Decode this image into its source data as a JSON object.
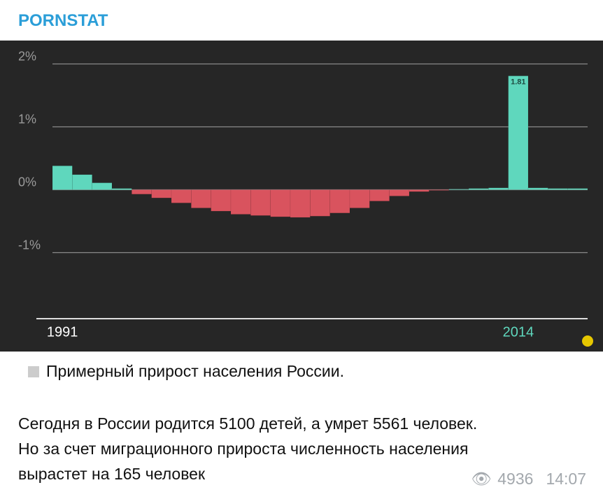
{
  "channel": {
    "name": "PORNSTAT"
  },
  "chart_data": {
    "type": "bar",
    "categories": [
      "1991",
      null,
      null,
      null,
      null,
      null,
      null,
      null,
      null,
      null,
      null,
      null,
      null,
      null,
      null,
      null,
      null,
      null,
      null,
      null,
      null,
      null,
      null,
      "2014",
      null,
      null,
      null
    ],
    "values": [
      0.38,
      0.24,
      0.11,
      0.02,
      -0.07,
      -0.13,
      -0.21,
      -0.29,
      -0.34,
      -0.39,
      -0.41,
      -0.43,
      -0.44,
      -0.42,
      -0.37,
      -0.29,
      -0.18,
      -0.1,
      -0.03,
      -0.01,
      0.01,
      0.02,
      0.03,
      1.81,
      0.03,
      0.02,
      0.02
    ],
    "value_labels": [
      null,
      null,
      null,
      null,
      null,
      null,
      null,
      null,
      null,
      null,
      null,
      null,
      null,
      null,
      null,
      null,
      null,
      null,
      null,
      null,
      null,
      null,
      null,
      "1.81",
      null,
      null,
      null
    ],
    "color_positive": "#5fd7bd",
    "color_negative": "#d9535e",
    "ylim": [
      -2.05,
      2.35
    ],
    "yticks": [
      {
        "value": -1,
        "label": "-1%"
      },
      {
        "value": 0,
        "label": "0%"
      },
      {
        "value": 1,
        "label": "1%"
      },
      {
        "value": 2,
        "label": "2%"
      }
    ],
    "grid": true
  },
  "post": {
    "caption": "Примерный прирост населения России.",
    "body": [
      "Сегодня в России родится 5100 детей, а умрет 5561 человек.",
      "Но за счет миграционного прироста численность населения",
      "вырастет на 165 человек"
    ],
    "views": "4936",
    "time": "14:07"
  }
}
